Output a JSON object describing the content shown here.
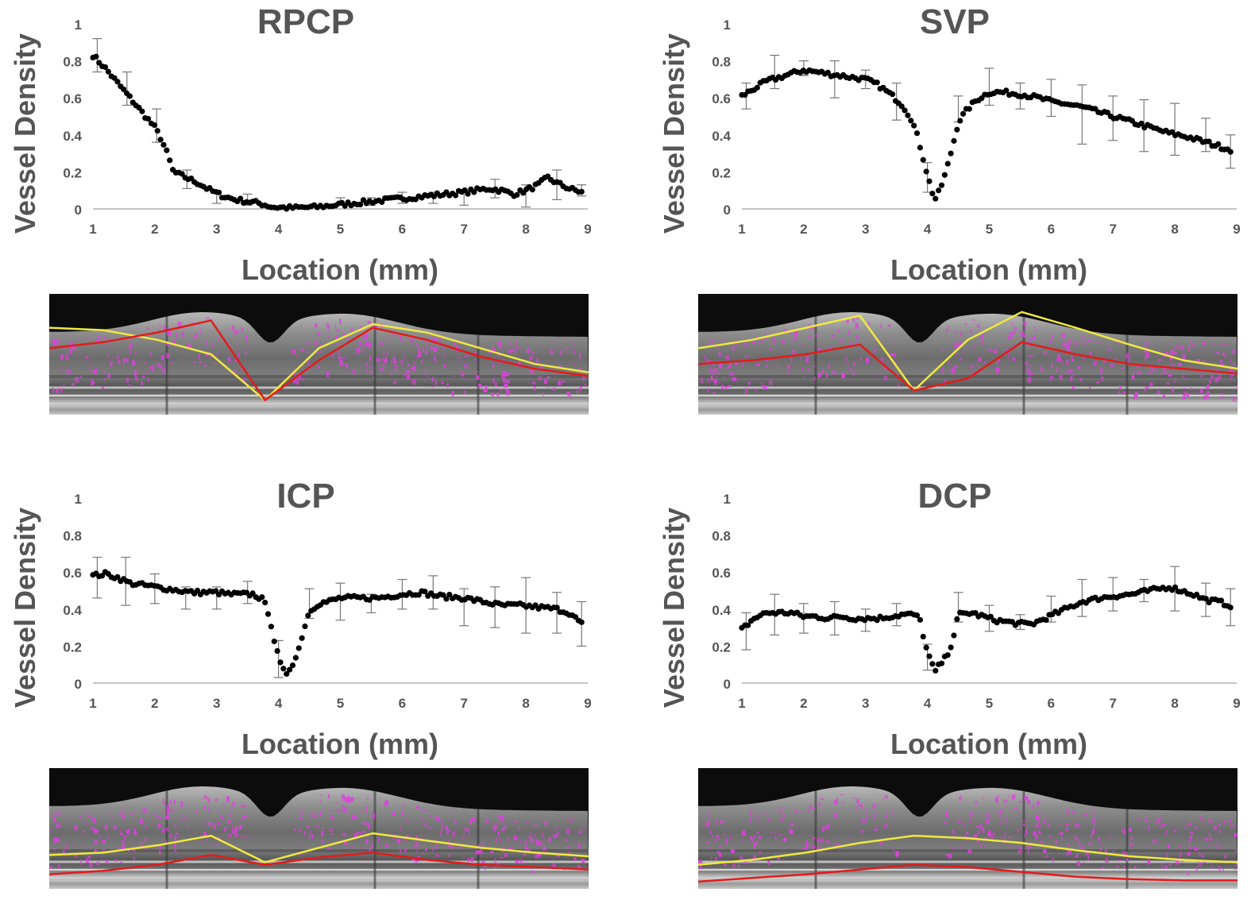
{
  "chart_data": [
    {
      "type": "scatter",
      "title": "RPCP",
      "xlabel": "Location (mm)",
      "ylabel": "Vessel Density",
      "xlim": [
        1,
        9
      ],
      "ylim": [
        0,
        1
      ],
      "x_ticks": [
        "1",
        "2",
        "3",
        "4",
        "5",
        "6",
        "7",
        "8",
        "9"
      ],
      "y_ticks": [
        "0",
        "0.2",
        "0.4",
        "0.6",
        "0.8",
        "1"
      ],
      "profile": [
        [
          1.0,
          0.83
        ],
        [
          1.2,
          0.76
        ],
        [
          1.4,
          0.68
        ],
        [
          1.6,
          0.6
        ],
        [
          1.8,
          0.52
        ],
        [
          2.0,
          0.44
        ],
        [
          2.1,
          0.38
        ],
        [
          2.2,
          0.3
        ],
        [
          2.3,
          0.2
        ],
        [
          2.5,
          0.17
        ],
        [
          2.7,
          0.14
        ],
        [
          2.9,
          0.1
        ],
        [
          3.1,
          0.07
        ],
        [
          3.3,
          0.05
        ],
        [
          3.5,
          0.04
        ],
        [
          3.7,
          0.03
        ],
        [
          3.9,
          0.01
        ],
        [
          4.2,
          0.005
        ],
        [
          4.6,
          0.01
        ],
        [
          4.9,
          0.02
        ],
        [
          5.2,
          0.03
        ],
        [
          5.5,
          0.04
        ],
        [
          5.8,
          0.05
        ],
        [
          6.1,
          0.06
        ],
        [
          6.4,
          0.07
        ],
        [
          6.7,
          0.08
        ],
        [
          7.0,
          0.09
        ],
        [
          7.2,
          0.1
        ],
        [
          7.4,
          0.11
        ],
        [
          7.6,
          0.1
        ],
        [
          7.8,
          0.08
        ],
        [
          8.0,
          0.1
        ],
        [
          8.2,
          0.13
        ],
        [
          8.35,
          0.17
        ],
        [
          8.5,
          0.14
        ],
        [
          8.7,
          0.11
        ],
        [
          8.9,
          0.09
        ]
      ],
      "error_bars": [
        {
          "x": 1.07,
          "y": 0.83,
          "err": 0.09
        },
        {
          "x": 1.55,
          "y": 0.65,
          "err": 0.09
        },
        {
          "x": 2.03,
          "y": 0.45,
          "err": 0.09
        },
        {
          "x": 2.52,
          "y": 0.16,
          "err": 0.05
        },
        {
          "x": 3.0,
          "y": 0.06,
          "err": 0.03
        },
        {
          "x": 3.5,
          "y": 0.05,
          "err": 0.03
        },
        {
          "x": 5.0,
          "y": 0.04,
          "err": 0.02
        },
        {
          "x": 5.5,
          "y": 0.04,
          "err": 0.02
        },
        {
          "x": 6.0,
          "y": 0.06,
          "err": 0.03
        },
        {
          "x": 6.5,
          "y": 0.06,
          "err": 0.03
        },
        {
          "x": 7.0,
          "y": 0.06,
          "err": 0.04
        },
        {
          "x": 7.5,
          "y": 0.11,
          "err": 0.05
        },
        {
          "x": 8.0,
          "y": 0.07,
          "err": 0.06
        },
        {
          "x": 8.5,
          "y": 0.13,
          "err": 0.08
        },
        {
          "x": 8.9,
          "y": 0.1,
          "err": 0.03
        }
      ]
    },
    {
      "type": "scatter",
      "title": "SVP",
      "xlabel": "Location (mm)",
      "ylabel": "Vessel Density",
      "xlim": [
        1,
        9
      ],
      "ylim": [
        0,
        1
      ],
      "x_ticks": [
        "1",
        "2",
        "3",
        "4",
        "5",
        "6",
        "7",
        "8",
        "9"
      ],
      "y_ticks": [
        "0",
        "0.2",
        "0.4",
        "0.6",
        "0.8",
        "1"
      ],
      "profile": [
        [
          1.0,
          0.61
        ],
        [
          1.2,
          0.65
        ],
        [
          1.4,
          0.69
        ],
        [
          1.6,
          0.71
        ],
        [
          1.8,
          0.73
        ],
        [
          2.0,
          0.75
        ],
        [
          2.2,
          0.74
        ],
        [
          2.4,
          0.73
        ],
        [
          2.6,
          0.72
        ],
        [
          2.8,
          0.71
        ],
        [
          3.0,
          0.7
        ],
        [
          3.2,
          0.67
        ],
        [
          3.4,
          0.62
        ],
        [
          3.6,
          0.56
        ],
        [
          3.75,
          0.48
        ],
        [
          3.85,
          0.38
        ],
        [
          3.95,
          0.25
        ],
        [
          4.05,
          0.12
        ],
        [
          4.12,
          0.05
        ],
        [
          4.2,
          0.1
        ],
        [
          4.3,
          0.2
        ],
        [
          4.4,
          0.33
        ],
        [
          4.5,
          0.47
        ],
        [
          4.65,
          0.54
        ],
        [
          4.8,
          0.59
        ],
        [
          5.0,
          0.63
        ],
        [
          5.2,
          0.63
        ],
        [
          5.5,
          0.62
        ],
        [
          5.8,
          0.6
        ],
        [
          6.0,
          0.58
        ],
        [
          6.2,
          0.57
        ],
        [
          6.5,
          0.55
        ],
        [
          6.8,
          0.52
        ],
        [
          7.0,
          0.5
        ],
        [
          7.3,
          0.47
        ],
        [
          7.6,
          0.44
        ],
        [
          7.9,
          0.41
        ],
        [
          8.2,
          0.39
        ],
        [
          8.5,
          0.36
        ],
        [
          8.7,
          0.34
        ],
        [
          8.9,
          0.32
        ]
      ],
      "error_bars": [
        {
          "x": 1.07,
          "y": 0.61,
          "err": 0.07
        },
        {
          "x": 1.53,
          "y": 0.74,
          "err": 0.09
        },
        {
          "x": 2.0,
          "y": 0.76,
          "err": 0.04
        },
        {
          "x": 2.5,
          "y": 0.7,
          "err": 0.1
        },
        {
          "x": 3.0,
          "y": 0.7,
          "err": 0.05
        },
        {
          "x": 3.5,
          "y": 0.58,
          "err": 0.1
        },
        {
          "x": 4.0,
          "y": 0.17,
          "err": 0.08
        },
        {
          "x": 4.5,
          "y": 0.54,
          "err": 0.07
        },
        {
          "x": 5.0,
          "y": 0.66,
          "err": 0.1
        },
        {
          "x": 5.5,
          "y": 0.61,
          "err": 0.07
        },
        {
          "x": 6.0,
          "y": 0.6,
          "err": 0.1
        },
        {
          "x": 6.5,
          "y": 0.51,
          "err": 0.16
        },
        {
          "x": 7.0,
          "y": 0.49,
          "err": 0.12
        },
        {
          "x": 7.5,
          "y": 0.45,
          "err": 0.14
        },
        {
          "x": 8.0,
          "y": 0.43,
          "err": 0.14
        },
        {
          "x": 8.5,
          "y": 0.4,
          "err": 0.09
        },
        {
          "x": 8.9,
          "y": 0.31,
          "err": 0.09
        }
      ]
    },
    {
      "type": "scatter",
      "title": "ICP",
      "xlabel": "Location (mm)",
      "ylabel": "Vessel Density",
      "xlim": [
        1,
        9
      ],
      "ylim": [
        0,
        1
      ],
      "x_ticks": [
        "1",
        "2",
        "3",
        "4",
        "5",
        "6",
        "7",
        "8",
        "9"
      ],
      "y_ticks": [
        "0",
        "0.2",
        "0.4",
        "0.6",
        "0.8",
        "1"
      ],
      "profile": [
        [
          1.0,
          0.58
        ],
        [
          1.2,
          0.59
        ],
        [
          1.4,
          0.57
        ],
        [
          1.6,
          0.54
        ],
        [
          1.8,
          0.53
        ],
        [
          2.0,
          0.52
        ],
        [
          2.2,
          0.51
        ],
        [
          2.4,
          0.5
        ],
        [
          2.6,
          0.49
        ],
        [
          2.8,
          0.49
        ],
        [
          3.0,
          0.49
        ],
        [
          3.2,
          0.48
        ],
        [
          3.4,
          0.48
        ],
        [
          3.6,
          0.48
        ],
        [
          3.75,
          0.45
        ],
        [
          3.85,
          0.37
        ],
        [
          3.95,
          0.2
        ],
        [
          4.05,
          0.08
        ],
        [
          4.12,
          0.05
        ],
        [
          4.2,
          0.09
        ],
        [
          4.3,
          0.15
        ],
        [
          4.4,
          0.28
        ],
        [
          4.5,
          0.39
        ],
        [
          4.65,
          0.43
        ],
        [
          4.8,
          0.44
        ],
        [
          5.0,
          0.46
        ],
        [
          5.3,
          0.46
        ],
        [
          5.6,
          0.46
        ],
        [
          6.0,
          0.48
        ],
        [
          6.3,
          0.49
        ],
        [
          6.6,
          0.47
        ],
        [
          7.0,
          0.46
        ],
        [
          7.3,
          0.44
        ],
        [
          7.6,
          0.42
        ],
        [
          7.9,
          0.42
        ],
        [
          8.2,
          0.41
        ],
        [
          8.5,
          0.4
        ],
        [
          8.7,
          0.38
        ],
        [
          8.9,
          0.32
        ]
      ],
      "error_bars": [
        {
          "x": 1.07,
          "y": 0.57,
          "err": 0.11
        },
        {
          "x": 1.53,
          "y": 0.55,
          "err": 0.13
        },
        {
          "x": 2.0,
          "y": 0.51,
          "err": 0.08
        },
        {
          "x": 2.5,
          "y": 0.46,
          "err": 0.06
        },
        {
          "x": 3.0,
          "y": 0.46,
          "err": 0.06
        },
        {
          "x": 3.5,
          "y": 0.49,
          "err": 0.06
        },
        {
          "x": 4.0,
          "y": 0.13,
          "err": 0.1
        },
        {
          "x": 4.5,
          "y": 0.43,
          "err": 0.08
        },
        {
          "x": 5.0,
          "y": 0.44,
          "err": 0.1
        },
        {
          "x": 5.5,
          "y": 0.43,
          "err": 0.05
        },
        {
          "x": 6.0,
          "y": 0.48,
          "err": 0.08
        },
        {
          "x": 6.5,
          "y": 0.49,
          "err": 0.09
        },
        {
          "x": 7.0,
          "y": 0.41,
          "err": 0.1
        },
        {
          "x": 7.5,
          "y": 0.41,
          "err": 0.11
        },
        {
          "x": 8.0,
          "y": 0.42,
          "err": 0.15
        },
        {
          "x": 8.5,
          "y": 0.38,
          "err": 0.11
        },
        {
          "x": 8.9,
          "y": 0.32,
          "err": 0.12
        }
      ]
    },
    {
      "type": "scatter",
      "title": "DCP",
      "xlabel": "Location (mm)",
      "ylabel": "Vessel Density",
      "xlim": [
        1,
        9
      ],
      "ylim": [
        0,
        1
      ],
      "x_ticks": [
        "1",
        "2",
        "3",
        "4",
        "5",
        "6",
        "7",
        "8",
        "9"
      ],
      "y_ticks": [
        "0",
        "0.2",
        "0.4",
        "0.6",
        "0.8",
        "1"
      ],
      "profile": [
        [
          1.0,
          0.29
        ],
        [
          1.1,
          0.32
        ],
        [
          1.2,
          0.35
        ],
        [
          1.4,
          0.38
        ],
        [
          1.6,
          0.38
        ],
        [
          1.8,
          0.38
        ],
        [
          2.0,
          0.36
        ],
        [
          2.2,
          0.36
        ],
        [
          2.4,
          0.35
        ],
        [
          2.6,
          0.36
        ],
        [
          2.8,
          0.35
        ],
        [
          3.0,
          0.35
        ],
        [
          3.2,
          0.35
        ],
        [
          3.4,
          0.36
        ],
        [
          3.6,
          0.37
        ],
        [
          3.8,
          0.37
        ],
        [
          3.9,
          0.33
        ],
        [
          3.95,
          0.22
        ],
        [
          4.05,
          0.12
        ],
        [
          4.12,
          0.06
        ],
        [
          4.2,
          0.1
        ],
        [
          4.3,
          0.14
        ],
        [
          4.4,
          0.22
        ],
        [
          4.5,
          0.37
        ],
        [
          4.7,
          0.38
        ],
        [
          4.9,
          0.36
        ],
        [
          5.1,
          0.34
        ],
        [
          5.3,
          0.33
        ],
        [
          5.5,
          0.32
        ],
        [
          5.7,
          0.32
        ],
        [
          5.9,
          0.35
        ],
        [
          6.1,
          0.38
        ],
        [
          6.3,
          0.41
        ],
        [
          6.5,
          0.44
        ],
        [
          6.8,
          0.46
        ],
        [
          7.0,
          0.47
        ],
        [
          7.3,
          0.48
        ],
        [
          7.6,
          0.5
        ],
        [
          7.9,
          0.52
        ],
        [
          8.1,
          0.5
        ],
        [
          8.3,
          0.48
        ],
        [
          8.5,
          0.45
        ],
        [
          8.7,
          0.44
        ],
        [
          8.9,
          0.42
        ]
      ],
      "error_bars": [
        {
          "x": 1.07,
          "y": 0.28,
          "err": 0.1
        },
        {
          "x": 1.53,
          "y": 0.37,
          "err": 0.11
        },
        {
          "x": 2.0,
          "y": 0.35,
          "err": 0.08
        },
        {
          "x": 2.5,
          "y": 0.35,
          "err": 0.09
        },
        {
          "x": 3.0,
          "y": 0.34,
          "err": 0.06
        },
        {
          "x": 3.5,
          "y": 0.37,
          "err": 0.06
        },
        {
          "x": 4.0,
          "y": 0.14,
          "err": 0.07
        },
        {
          "x": 4.5,
          "y": 0.41,
          "err": 0.08
        },
        {
          "x": 5.0,
          "y": 0.35,
          "err": 0.07
        },
        {
          "x": 5.5,
          "y": 0.33,
          "err": 0.04
        },
        {
          "x": 6.0,
          "y": 0.4,
          "err": 0.07
        },
        {
          "x": 6.5,
          "y": 0.46,
          "err": 0.1
        },
        {
          "x": 7.0,
          "y": 0.48,
          "err": 0.09
        },
        {
          "x": 7.5,
          "y": 0.5,
          "err": 0.06
        },
        {
          "x": 8.0,
          "y": 0.51,
          "err": 0.12
        },
        {
          "x": 8.5,
          "y": 0.45,
          "err": 0.09
        },
        {
          "x": 8.9,
          "y": 0.41,
          "err": 0.1
        }
      ]
    }
  ],
  "colors": {
    "text": "#555555",
    "marker": "#000000",
    "error_bar": "#777777",
    "axis_line": "#b0b0b0",
    "upper_boundary": "#f0e840",
    "lower_boundary": "#e31b1b",
    "flow_overlay": "#e040e0"
  },
  "oct_images": [
    {
      "name": "rpcp",
      "upper_boundary": [
        0.72,
        0.7,
        0.62,
        0.5,
        0.12,
        0.55,
        0.75,
        0.68,
        0.55,
        0.42,
        0.35
      ],
      "lower_boundary": [
        0.55,
        0.6,
        0.68,
        0.78,
        0.12,
        0.45,
        0.72,
        0.62,
        0.48,
        0.38,
        0.32
      ]
    },
    {
      "name": "svp",
      "upper_boundary": [
        0.55,
        0.62,
        0.72,
        0.82,
        0.2,
        0.62,
        0.85,
        0.72,
        0.58,
        0.45,
        0.38
      ],
      "lower_boundary": [
        0.42,
        0.45,
        0.5,
        0.58,
        0.2,
        0.3,
        0.6,
        0.5,
        0.42,
        0.38,
        0.34
      ]
    },
    {
      "name": "icp",
      "upper_boundary": [
        0.28,
        0.3,
        0.36,
        0.44,
        0.22,
        0.34,
        0.46,
        0.4,
        0.34,
        0.3,
        0.27
      ],
      "lower_boundary": [
        0.12,
        0.15,
        0.2,
        0.28,
        0.2,
        0.26,
        0.3,
        0.24,
        0.2,
        0.18,
        0.16
      ]
    },
    {
      "name": "dcp",
      "upper_boundary": [
        0.2,
        0.24,
        0.3,
        0.38,
        0.44,
        0.42,
        0.38,
        0.32,
        0.27,
        0.24,
        0.22
      ],
      "lower_boundary": [
        0.06,
        0.09,
        0.12,
        0.16,
        0.2,
        0.18,
        0.14,
        0.1,
        0.08,
        0.07,
        0.07
      ]
    }
  ]
}
